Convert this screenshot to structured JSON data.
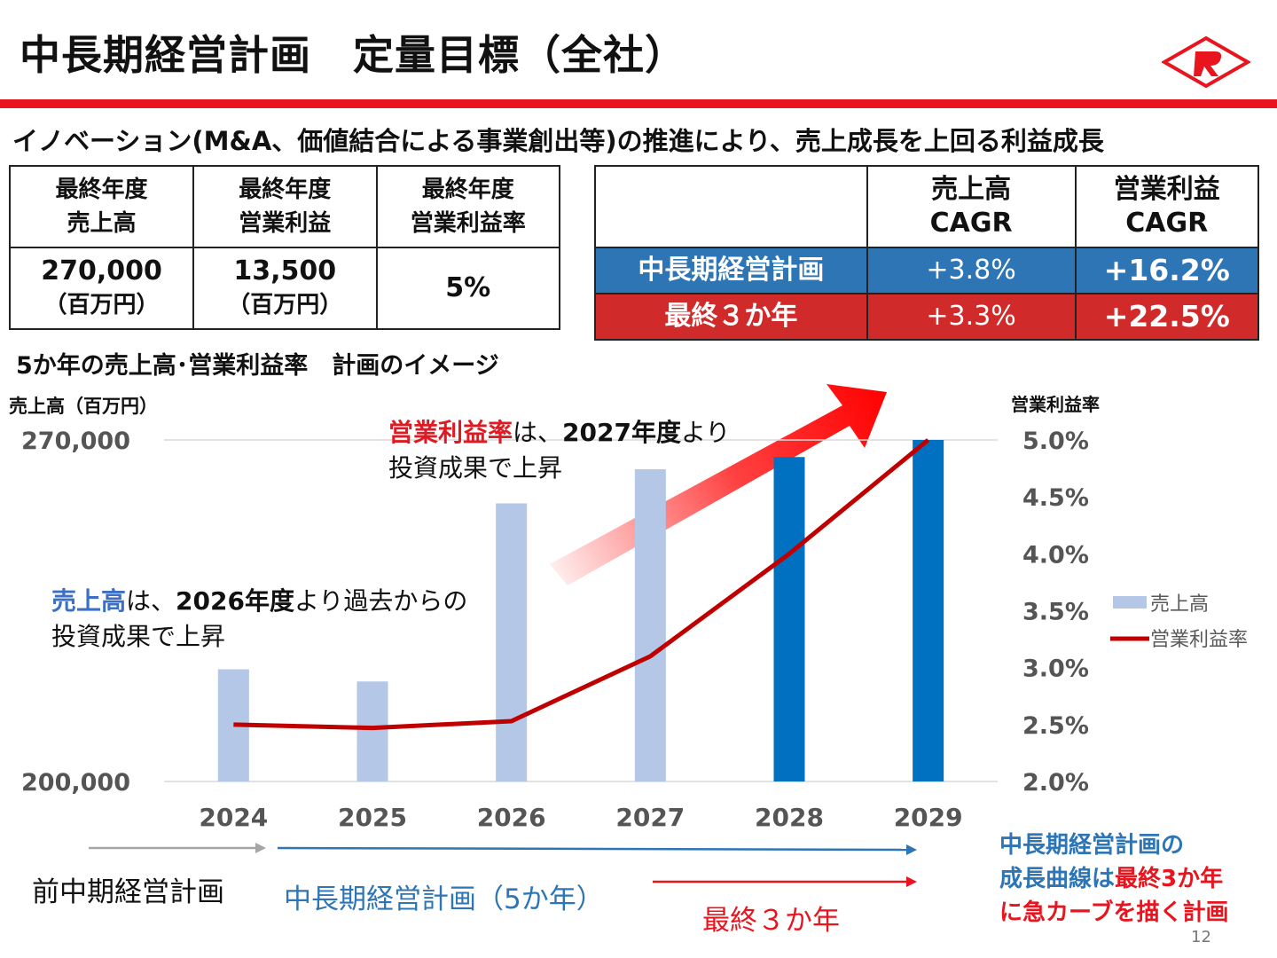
{
  "header": {
    "title": "中長期経営計画　定量目標（全社）",
    "subtitle": "イノベーション(M&A、価値結合による事業創出等)の推進により、売上成長を上回る利益成長"
  },
  "target_table": {
    "headers": [
      [
        "最終年度",
        "売上高"
      ],
      [
        "最終年度",
        "営業利益"
      ],
      [
        "最終年度",
        "営業利益率"
      ]
    ],
    "values": [
      {
        "value": "270,000",
        "unit": "（百万円）"
      },
      {
        "value": "13,500",
        "unit": "（百万円）"
      },
      {
        "value": "5%",
        "unit": ""
      }
    ]
  },
  "cagr_table": {
    "headers": [
      [
        "売上高",
        "CAGR"
      ],
      [
        "営業利益",
        "CAGR"
      ]
    ],
    "rows": [
      {
        "label": "中長期経営計画",
        "sales": "+3.8%",
        "profit": "+16.2%",
        "color": "#2e75b6"
      },
      {
        "label": "最終３か年",
        "sales": "+3.3%",
        "profit": "+22.5%",
        "color": "#d12a2a"
      }
    ]
  },
  "section_title": "5か年の売上高･営業利益率　計画のイメージ",
  "annotations": {
    "profit_note": {
      "highlight": "営業利益率",
      "mid": "は、",
      "bold": "2027年度",
      "tail": "より",
      "line2": "投資成果で上昇"
    },
    "sales_note": {
      "highlight": "売上高",
      "mid": "は、",
      "bold": "2026年度",
      "tail": "より過去からの",
      "line2": "投資成果で上昇"
    },
    "conclusion": {
      "l1": "中長期経営計画の",
      "l2a": "成長曲線は",
      "l2b": "最終3か年",
      "l3": "に急カーブを描く計画"
    },
    "timeline": {
      "prev": "前中期経営計画",
      "plan": "中長期経営計画（5か年）",
      "final": "最終３か年"
    }
  },
  "chart_data": {
    "type": "bar",
    "categories": [
      "2024",
      "2025",
      "2026",
      "2027",
      "2028",
      "2029"
    ],
    "series": [
      {
        "name": "売上高",
        "axis": "left",
        "values": [
          223000,
          220500,
          257000,
          264000,
          266500,
          270000
        ],
        "colors": [
          "#b4c7e7",
          "#b4c7e7",
          "#b4c7e7",
          "#b4c7e7",
          "#0070c0",
          "#0070c0"
        ]
      },
      {
        "name": "営業利益率",
        "axis": "right",
        "type": "line",
        "values": [
          2.5,
          2.47,
          2.53,
          3.1,
          4.0,
          5.0
        ],
        "color": "#c00000"
      }
    ],
    "y_left": {
      "label": "売上高（百万円）",
      "ticks": [
        "270,000",
        "200,000"
      ],
      "range": [
        200000,
        270000
      ]
    },
    "y_right": {
      "label": "営業利益率",
      "ticks": [
        "5.0%",
        "4.5%",
        "4.0%",
        "3.5%",
        "3.0%",
        "2.5%",
        "2.0%"
      ],
      "range": [
        2.0,
        5.0
      ]
    },
    "legend": [
      "売上高",
      "営業利益率"
    ],
    "legend_position": "right",
    "grid": true
  },
  "page_number": "12"
}
